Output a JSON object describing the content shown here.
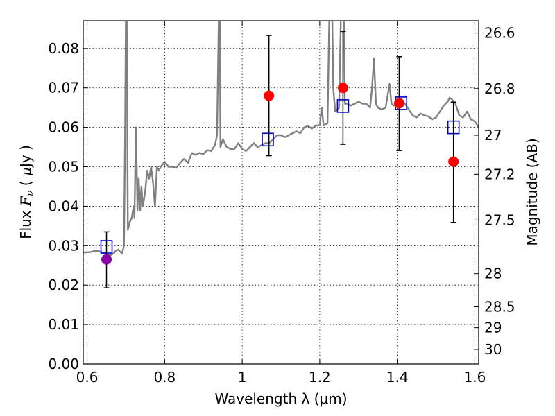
{
  "chart_data": {
    "type": "scatter",
    "title": "",
    "xlabel": "Wavelength  λ (μm)",
    "ylabel": "Flux  F_ν  ( μJy )",
    "ylabel_parts": [
      "Flux  ",
      "F",
      "ν",
      "  ( ",
      "μ",
      "Jy )"
    ],
    "y2label": "Magnitude (AB)",
    "xlim": [
      0.59,
      1.61
    ],
    "ylim": [
      0.0,
      0.087
    ],
    "x_ticks": [
      0.6,
      0.8,
      1.0,
      1.2,
      1.4,
      1.6
    ],
    "x_tick_labels": [
      "0.6",
      "0.8",
      "1",
      "1.2",
      "1.4",
      "1.6"
    ],
    "y_ticks": [
      0.0,
      0.01,
      0.02,
      0.03,
      0.04,
      0.05,
      0.06,
      0.07,
      0.08
    ],
    "y_tick_labels": [
      "0.00",
      "0.01",
      "0.02",
      "0.03",
      "0.04",
      "0.05",
      "0.06",
      "0.07",
      "0.08"
    ],
    "y2_ticks": [
      {
        "flux": 0.0839,
        "label": "26.6"
      },
      {
        "flux": 0.0698,
        "label": "26.8"
      },
      {
        "flux": 0.058,
        "label": "27"
      },
      {
        "flux": 0.0481,
        "label": "27.2"
      },
      {
        "flux": 0.0365,
        "label": "27.5"
      },
      {
        "flux": 0.0229,
        "label": "28"
      },
      {
        "flux": 0.0145,
        "label": "28.5"
      },
      {
        "flux": 0.0092,
        "label": "29"
      },
      {
        "flux": 0.0037,
        "label": "30"
      }
    ],
    "grid": true,
    "colors": {
      "model": "#808080",
      "model_points": "#0000cc",
      "obs_points": "#ff0000",
      "first_point": "#8800aa",
      "errorbar": "#000000"
    },
    "series": [
      {
        "kind": "line",
        "points": [
          [
            0.59,
            0.0283
          ],
          [
            0.6,
            0.0283
          ],
          [
            0.61,
            0.0284
          ],
          [
            0.62,
            0.0287
          ],
          [
            0.63,
            0.0286
          ],
          [
            0.64,
            0.0283
          ],
          [
            0.65,
            0.0278
          ],
          [
            0.66,
            0.0275
          ],
          [
            0.67,
            0.0282
          ],
          [
            0.675,
            0.0288
          ],
          [
            0.68,
            0.029
          ],
          [
            0.685,
            0.0285
          ],
          [
            0.69,
            0.028
          ],
          [
            0.695,
            0.03
          ],
          [
            0.698,
            0.06
          ],
          [
            0.7,
            0.09
          ],
          [
            0.702,
            0.09
          ],
          [
            0.705,
            0.034
          ],
          [
            0.71,
            0.036
          ],
          [
            0.715,
            0.037
          ],
          [
            0.72,
            0.04
          ],
          [
            0.722,
            0.037
          ],
          [
            0.726,
            0.06
          ],
          [
            0.73,
            0.039
          ],
          [
            0.733,
            0.047
          ],
          [
            0.737,
            0.039
          ],
          [
            0.74,
            0.045
          ],
          [
            0.744,
            0.04
          ],
          [
            0.75,
            0.044
          ],
          [
            0.755,
            0.049
          ],
          [
            0.76,
            0.047
          ],
          [
            0.765,
            0.05
          ],
          [
            0.77,
            0.046
          ],
          [
            0.775,
            0.04
          ],
          [
            0.78,
            0.05
          ],
          [
            0.785,
            0.049
          ],
          [
            0.79,
            0.05
          ],
          [
            0.8,
            0.0513
          ],
          [
            0.81,
            0.05
          ],
          [
            0.82,
            0.05
          ],
          [
            0.83,
            0.0497
          ],
          [
            0.84,
            0.051
          ],
          [
            0.85,
            0.052
          ],
          [
            0.86,
            0.051
          ],
          [
            0.87,
            0.0535
          ],
          [
            0.88,
            0.053
          ],
          [
            0.89,
            0.0535
          ],
          [
            0.9,
            0.0532
          ],
          [
            0.91,
            0.0542
          ],
          [
            0.92,
            0.054
          ],
          [
            0.93,
            0.0555
          ],
          [
            0.935,
            0.058
          ],
          [
            0.94,
            0.09
          ],
          [
            0.942,
            0.09
          ],
          [
            0.944,
            0.055
          ],
          [
            0.95,
            0.057
          ],
          [
            0.96,
            0.055
          ],
          [
            0.97,
            0.0545
          ],
          [
            0.98,
            0.0545
          ],
          [
            0.99,
            0.056
          ],
          [
            1.0,
            0.0545
          ],
          [
            1.01,
            0.054
          ],
          [
            1.02,
            0.055
          ],
          [
            1.03,
            0.056
          ],
          [
            1.04,
            0.055
          ],
          [
            1.05,
            0.0555
          ],
          [
            1.06,
            0.056
          ],
          [
            1.07,
            0.056
          ],
          [
            1.08,
            0.057
          ],
          [
            1.09,
            0.058
          ],
          [
            1.1,
            0.058
          ],
          [
            1.11,
            0.0575
          ],
          [
            1.12,
            0.058
          ],
          [
            1.13,
            0.0585
          ],
          [
            1.14,
            0.059
          ],
          [
            1.15,
            0.0585
          ],
          [
            1.16,
            0.06
          ],
          [
            1.17,
            0.0603
          ],
          [
            1.18,
            0.0597
          ],
          [
            1.19,
            0.0605
          ],
          [
            1.2,
            0.0605
          ],
          [
            1.205,
            0.065
          ],
          [
            1.21,
            0.0605
          ],
          [
            1.22,
            0.061
          ],
          [
            1.225,
            0.09
          ],
          [
            1.232,
            0.09
          ],
          [
            1.235,
            0.07
          ],
          [
            1.24,
            0.064
          ],
          [
            1.25,
            0.065
          ],
          [
            1.255,
            0.09
          ],
          [
            1.262,
            0.09
          ],
          [
            1.265,
            0.066
          ],
          [
            1.27,
            0.066
          ],
          [
            1.28,
            0.0655
          ],
          [
            1.29,
            0.066
          ],
          [
            1.3,
            0.0665
          ],
          [
            1.31,
            0.066
          ],
          [
            1.32,
            0.066
          ],
          [
            1.33,
            0.065
          ],
          [
            1.335,
            0.07
          ],
          [
            1.34,
            0.0775
          ],
          [
            1.345,
            0.066
          ],
          [
            1.35,
            0.065
          ],
          [
            1.36,
            0.0645
          ],
          [
            1.37,
            0.065
          ],
          [
            1.38,
            0.071
          ],
          [
            1.385,
            0.066
          ],
          [
            1.39,
            0.0655
          ],
          [
            1.4,
            0.066
          ],
          [
            1.41,
            0.0665
          ],
          [
            1.42,
            0.066
          ],
          [
            1.43,
            0.0645
          ],
          [
            1.44,
            0.063
          ],
          [
            1.45,
            0.0625
          ],
          [
            1.46,
            0.0635
          ],
          [
            1.47,
            0.063
          ],
          [
            1.48,
            0.0628
          ],
          [
            1.49,
            0.062
          ],
          [
            1.5,
            0.0625
          ],
          [
            1.51,
            0.064
          ],
          [
            1.52,
            0.0655
          ],
          [
            1.53,
            0.0665
          ],
          [
            1.535,
            0.0675
          ],
          [
            1.54,
            0.0672
          ],
          [
            1.55,
            0.066
          ],
          [
            1.56,
            0.063
          ],
          [
            1.57,
            0.0625
          ],
          [
            1.58,
            0.064
          ],
          [
            1.59,
            0.062
          ],
          [
            1.6,
            0.0615
          ],
          [
            1.61,
            0.06
          ]
        ]
      },
      {
        "kind": "model-squares",
        "points": [
          [
            0.65,
            0.0297
          ],
          [
            1.066,
            0.0569
          ],
          [
            1.26,
            0.0654
          ],
          [
            1.41,
            0.0661
          ],
          [
            1.545,
            0.06
          ]
        ]
      },
      {
        "kind": "observed",
        "points": [
          {
            "x": 0.65,
            "y": 0.0265,
            "ylo": 0.0193,
            "yhi": 0.0335,
            "color": "#8800aa"
          },
          {
            "x": 1.069,
            "y": 0.068,
            "ylo": 0.0528,
            "yhi": 0.0833,
            "color": "#ff0000"
          },
          {
            "x": 1.26,
            "y": 0.07,
            "ylo": 0.0557,
            "yhi": 0.0843,
            "color": "#ff0000"
          },
          {
            "x": 1.405,
            "y": 0.0661,
            "ylo": 0.0541,
            "yhi": 0.0779,
            "color": "#ff0000"
          },
          {
            "x": 1.545,
            "y": 0.0513,
            "ylo": 0.0359,
            "yhi": 0.0664,
            "color": "#ff0000"
          }
        ]
      }
    ]
  }
}
